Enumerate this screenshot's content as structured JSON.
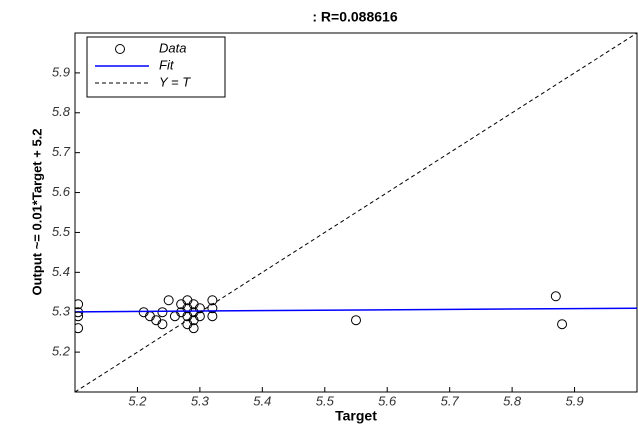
{
  "chart_data": {
    "type": "scatter",
    "title": ": R=0.088616",
    "x_label": "Target",
    "y_label": "Output ~= 0.01*Target + 5.2",
    "xlim": [
      5.1,
      6.0
    ],
    "ylim": [
      5.1,
      6.0
    ],
    "xticks": [
      5.2,
      5.3,
      5.4,
      5.5,
      5.6,
      5.7,
      5.8,
      5.9
    ],
    "yticks": [
      5.2,
      5.3,
      5.4,
      5.5,
      5.6,
      5.7,
      5.8,
      5.9
    ],
    "legend": "upper-left",
    "series": [
      {
        "name": "Data",
        "color": "#000000",
        "style": "marker",
        "x": [
          5.105,
          5.105,
          5.105,
          5.105,
          5.21,
          5.22,
          5.23,
          5.24,
          5.24,
          5.25,
          5.26,
          5.27,
          5.27,
          5.28,
          5.28,
          5.28,
          5.28,
          5.29,
          5.29,
          5.29,
          5.29,
          5.3,
          5.3,
          5.32,
          5.32,
          5.32,
          5.55,
          5.87,
          5.88
        ],
        "values": [
          5.3,
          5.32,
          5.26,
          5.29,
          5.3,
          5.29,
          5.28,
          5.27,
          5.3,
          5.33,
          5.29,
          5.32,
          5.3,
          5.33,
          5.31,
          5.29,
          5.27,
          5.32,
          5.3,
          5.26,
          5.28,
          5.31,
          5.29,
          5.33,
          5.31,
          5.29,
          5.28,
          5.34,
          5.27
        ]
      },
      {
        "name": "Fit",
        "color": "#0000ff",
        "style": "line",
        "x": [
          5.1,
          6.0
        ],
        "values": [
          5.301,
          5.31
        ]
      },
      {
        "name": "Y = T",
        "color": "#000000",
        "style": "dashed",
        "x": [
          5.1,
          6.0
        ],
        "values": [
          5.1,
          6.0
        ]
      }
    ]
  }
}
